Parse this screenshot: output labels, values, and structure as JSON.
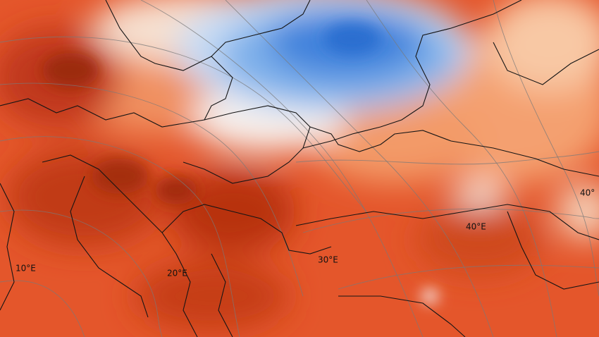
{
  "map": {
    "labels": [
      "10°E",
      "20°E",
      "30°E",
      "40°E",
      "40°"
    ]
  }
}
